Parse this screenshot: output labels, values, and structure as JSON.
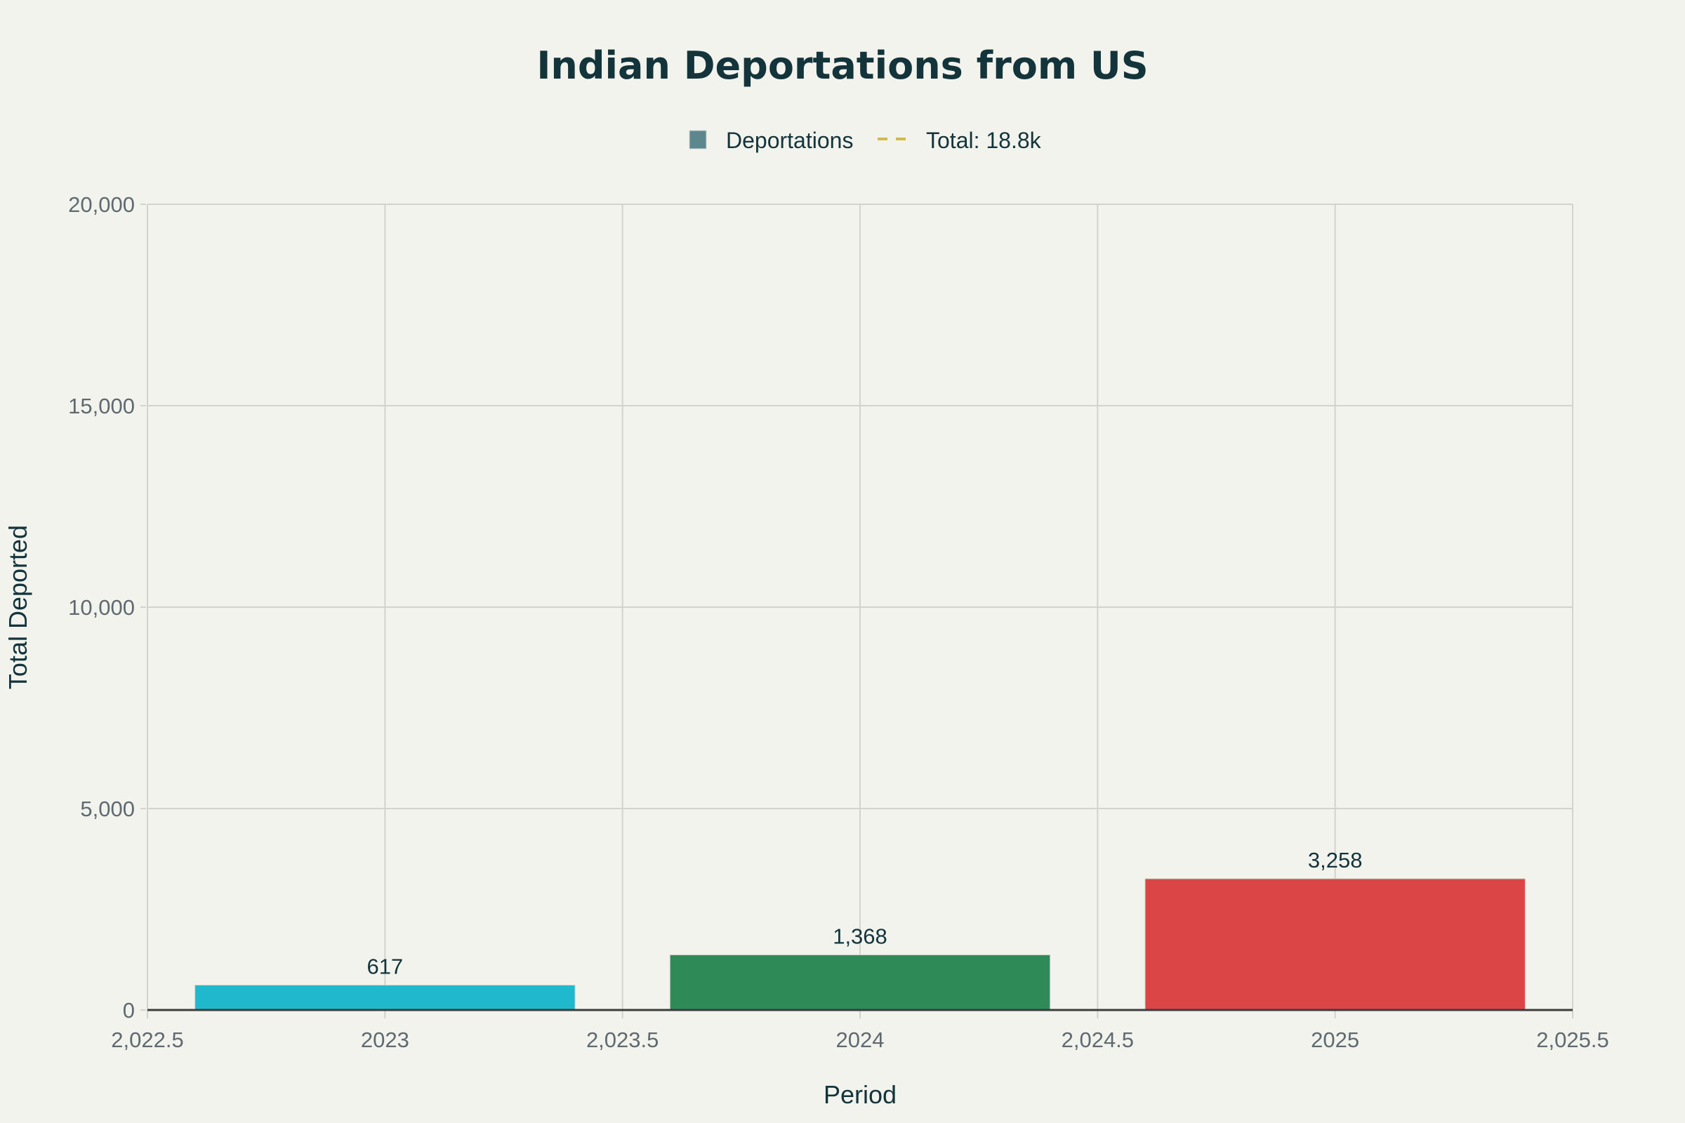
{
  "chart_data": {
    "type": "bar",
    "title": "Indian Deportations from US",
    "xlabel": "Period",
    "ylabel": "Total Deported",
    "categories": [
      2023,
      2024,
      2025
    ],
    "values": [
      617,
      1368,
      3258
    ],
    "data_labels": [
      "617",
      "1,368",
      "3,258"
    ],
    "bar_colors": [
      "#1fb8cd",
      "#2e8b57",
      "#db4545"
    ],
    "bar_width": 0.8,
    "xlim": [
      2022.5,
      2025.5
    ],
    "ylim": [
      0,
      20000
    ],
    "x_ticks": [
      2022.5,
      2023,
      2023.5,
      2024,
      2024.5,
      2025,
      2025.5
    ],
    "x_tick_labels": [
      "2,022.5",
      "2023",
      "2,023.5",
      "2024",
      "2,024.5",
      "2025",
      "2,025.5"
    ],
    "y_ticks": [
      0,
      5000,
      10000,
      15000,
      20000
    ],
    "y_tick_labels": [
      "0",
      "5,000",
      "10,000",
      "15,000",
      "20,000"
    ],
    "grid": true,
    "legend": {
      "placement": "top-center",
      "entries": [
        {
          "label": "Deportations",
          "marker": "square",
          "color": "#5d878f"
        },
        {
          "label": "Total: 18.8k",
          "marker": "dashed-line",
          "color": "#d2ba4c"
        }
      ]
    }
  }
}
